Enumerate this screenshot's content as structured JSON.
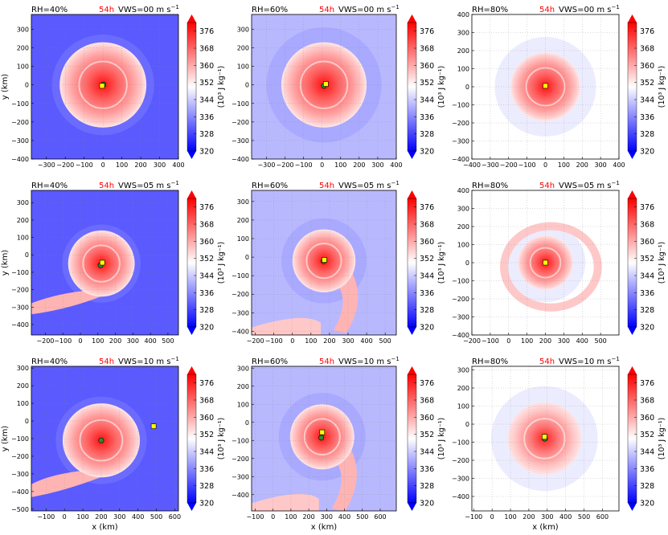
{
  "figure": {
    "panel_title_left_prefix": "RH=",
    "panel_title_right_prefix": "VWS=",
    "units_suffix": " m s",
    "units_sup": "−1",
    "xlabel": "x (km)",
    "ylabel": "y (km)"
  },
  "chart_data": [
    {
      "type": "heatmap",
      "panel": "RH40-VWS00",
      "rh": "40%",
      "time": "54h",
      "vws": "00",
      "xlim": [
        -380,
        400
      ],
      "ylim": [
        -400,
        380
      ],
      "xticks": [
        -300,
        -200,
        -100,
        0,
        100,
        200,
        300,
        400
      ],
      "yticks": [
        -400,
        -300,
        -200,
        -100,
        0,
        100,
        200,
        300
      ],
      "xlabel": "",
      "ylabel": "y (km)",
      "bg": "#5a5aff",
      "storm": {
        "cx": 0,
        "cy": 0,
        "r": 230,
        "spiral": "none"
      },
      "markers": [
        {
          "name": "center-green",
          "x": 2,
          "y": 2,
          "color": "#2e8b2e"
        },
        {
          "name": "center-yellow",
          "x": -5,
          "y": -5,
          "color": "#ffff00"
        }
      ],
      "colorbar": {
        "ticks": [
          320,
          328,
          336,
          344,
          352,
          360,
          368,
          376
        ],
        "label": "(10³ J kg⁻¹)"
      }
    },
    {
      "type": "heatmap",
      "panel": "RH60-VWS00",
      "rh": "60%",
      "time": "54h",
      "vws": "00",
      "xlim": [
        -380,
        400
      ],
      "ylim": [
        -400,
        380
      ],
      "xticks": [
        -300,
        -200,
        -100,
        0,
        100,
        200,
        300,
        400
      ],
      "yticks": [
        -400,
        -300,
        -200,
        -100,
        0,
        100,
        200,
        300
      ],
      "xlabel": "",
      "ylabel": "",
      "bg": "#b8b8ff",
      "storm": {
        "cx": 10,
        "cy": 0,
        "r": 230,
        "spiral": "none"
      },
      "markers": [
        {
          "name": "center-green",
          "x": 10,
          "y": -5,
          "color": "#2e8b2e"
        },
        {
          "name": "center-yellow",
          "x": 20,
          "y": 5,
          "color": "#ffff00"
        }
      ],
      "colorbar": {
        "ticks": [
          320,
          328,
          336,
          344,
          352,
          360,
          368,
          376
        ],
        "label": "(10³ J kg⁻¹)"
      }
    },
    {
      "type": "heatmap",
      "panel": "RH80-VWS00",
      "rh": "80%",
      "time": "54h",
      "vws": "00",
      "xlim": [
        -400,
        400
      ],
      "ylim": [
        -400,
        400
      ],
      "xticks": [
        -400,
        -300,
        -200,
        -100,
        0,
        100,
        200,
        300,
        400
      ],
      "yticks": [
        -400,
        -300,
        -200,
        -100,
        0,
        100,
        200,
        300,
        400
      ],
      "xlabel": "",
      "ylabel": "",
      "bg": "#ffffff",
      "storm": {
        "cx": 0,
        "cy": 0,
        "r": 190,
        "spiral": "none"
      },
      "markers": [
        {
          "name": "center-yellow",
          "x": 0,
          "y": 5,
          "color": "#ffff00"
        }
      ],
      "colorbar": {
        "ticks": [
          320,
          328,
          336,
          344,
          352,
          360,
          368,
          376
        ],
        "label": "(10³ J kg⁻¹)"
      }
    },
    {
      "type": "heatmap",
      "panel": "RH40-VWS05",
      "rh": "40%",
      "time": "54h",
      "vws": "05",
      "xlim": [
        -280,
        560
      ],
      "ylim": [
        -460,
        370
      ],
      "xticks": [
        -200,
        -100,
        0,
        100,
        200,
        300,
        400,
        500
      ],
      "yticks": [
        -400,
        -300,
        -200,
        -100,
        0,
        100,
        200,
        300
      ],
      "xlabel": "",
      "ylabel": "y (km)",
      "bg": "#5a5aff",
      "storm": {
        "cx": 120,
        "cy": -50,
        "r": 190,
        "spiral": "sw"
      },
      "markers": [
        {
          "name": "center-green",
          "x": 115,
          "y": -60,
          "color": "#2e8b2e"
        },
        {
          "name": "center-yellow",
          "x": 125,
          "y": -45,
          "color": "#ffff00"
        }
      ],
      "colorbar": {
        "ticks": [
          320,
          328,
          336,
          344,
          352,
          360,
          368,
          376
        ],
        "label": "(10³ J kg⁻¹)"
      }
    },
    {
      "type": "heatmap",
      "panel": "RH60-VWS05",
      "rh": "60%",
      "time": "54h",
      "vws": "05",
      "xlim": [
        -220,
        560
      ],
      "ylim": [
        -420,
        360
      ],
      "xticks": [
        -200,
        -100,
        0,
        100,
        200,
        300,
        400,
        500
      ],
      "yticks": [
        -400,
        -300,
        -200,
        -100,
        0,
        100,
        200,
        300
      ],
      "xlabel": "",
      "ylabel": "",
      "bg": "#b8b8ff",
      "storm": {
        "cx": 170,
        "cy": -20,
        "r": 170,
        "spiral": "s"
      },
      "markers": [
        {
          "name": "center-green",
          "x": 168,
          "y": -22,
          "color": "#2e8b2e"
        },
        {
          "name": "center-yellow",
          "x": 172,
          "y": -15,
          "color": "#ffff00"
        }
      ],
      "colorbar": {
        "ticks": [
          320,
          328,
          336,
          344,
          352,
          360,
          368,
          376
        ],
        "label": "(10³ J kg⁻¹)"
      }
    },
    {
      "type": "heatmap",
      "panel": "RH80-VWS05",
      "rh": "80%",
      "time": "54h",
      "vws": "05",
      "xlim": [
        -200,
        600
      ],
      "ylim": [
        -400,
        400
      ],
      "xticks": [
        -200,
        -100,
        0,
        100,
        200,
        300,
        400,
        500
      ],
      "yticks": [
        -400,
        -300,
        -200,
        -100,
        0,
        100,
        200,
        300,
        400
      ],
      "xlabel": "",
      "ylabel": "",
      "bg": "#ffffff",
      "storm": {
        "cx": 200,
        "cy": 0,
        "r": 150,
        "spiral": "ring"
      },
      "markers": [
        {
          "name": "center-yellow",
          "x": 200,
          "y": 0,
          "color": "#ffff00"
        }
      ],
      "colorbar": {
        "ticks": [
          320,
          328,
          336,
          344,
          352,
          360,
          368,
          376
        ],
        "label": "(10³ J kg⁻¹)"
      }
    },
    {
      "type": "heatmap",
      "panel": "RH40-VWS10",
      "rh": "40%",
      "time": "54h",
      "vws": "10",
      "xlim": [
        -180,
        620
      ],
      "ylim": [
        -510,
        310
      ],
      "xticks": [
        -100,
        0,
        100,
        200,
        300,
        400,
        500,
        600
      ],
      "yticks": [
        -500,
        -400,
        -300,
        -200,
        -100,
        0,
        100,
        200,
        300
      ],
      "xlabel": "x (km)",
      "ylabel": "y (km)",
      "bg": "#5a5aff",
      "storm": {
        "cx": 200,
        "cy": -110,
        "r": 210,
        "spiral": "sw"
      },
      "markers": [
        {
          "name": "center-green",
          "x": 200,
          "y": -110,
          "color": "#2e8b2e"
        },
        {
          "name": "center-yellow",
          "x": 485,
          "y": -30,
          "color": "#ffff00"
        }
      ],
      "colorbar": {
        "ticks": [
          320,
          328,
          336,
          344,
          352,
          360,
          368,
          376
        ],
        "label": "(10³ J kg⁻¹)"
      }
    },
    {
      "type": "heatmap",
      "panel": "RH60-VWS10",
      "rh": "60%",
      "time": "54h",
      "vws": "10",
      "xlim": [
        -120,
        690
      ],
      "ylim": [
        -490,
        310
      ],
      "xticks": [
        -100,
        0,
        100,
        200,
        300,
        400,
        500,
        600
      ],
      "yticks": [
        -400,
        -300,
        -200,
        -100,
        0,
        100,
        200,
        300
      ],
      "xlabel": "x (km)",
      "ylabel": "",
      "bg": "#b8b8ff",
      "storm": {
        "cx": 275,
        "cy": -80,
        "r": 180,
        "spiral": "s"
      },
      "markers": [
        {
          "name": "center-green",
          "x": 270,
          "y": -85,
          "color": "#2e8b2e"
        },
        {
          "name": "center-yellow",
          "x": 275,
          "y": -55,
          "color": "#ffff00"
        }
      ],
      "colorbar": {
        "ticks": [
          320,
          328,
          336,
          344,
          352,
          360,
          368,
          376
        ],
        "label": "(10³ J kg⁻¹)"
      }
    },
    {
      "type": "heatmap",
      "panel": "RH80-VWS10",
      "rh": "80%",
      "time": "54h",
      "vws": "10",
      "xlim": [
        -110,
        690
      ],
      "ylim": [
        -480,
        320
      ],
      "xticks": [
        -100,
        0,
        100,
        200,
        300,
        400,
        500,
        600
      ],
      "yticks": [
        -400,
        -300,
        -200,
        -100,
        0,
        100,
        200,
        300
      ],
      "xlabel": "x (km)",
      "ylabel": "",
      "bg": "#ffffff",
      "storm": {
        "cx": 285,
        "cy": -80,
        "r": 200,
        "spiral": "faint"
      },
      "markers": [
        {
          "name": "center-green",
          "x": 287,
          "y": -80,
          "color": "#2e8b2e"
        },
        {
          "name": "center-yellow",
          "x": 285,
          "y": -70,
          "color": "#ffff00"
        }
      ],
      "colorbar": {
        "ticks": [
          320,
          328,
          336,
          344,
          352,
          360,
          368,
          376
        ],
        "label": "(10³ J kg⁻¹)"
      }
    }
  ]
}
